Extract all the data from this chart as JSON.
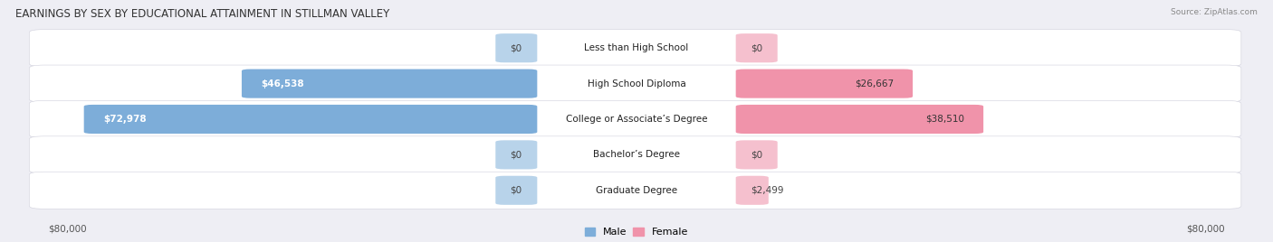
{
  "title": "EARNINGS BY SEX BY EDUCATIONAL ATTAINMENT IN STILLMAN VALLEY",
  "source": "Source: ZipAtlas.com",
  "categories": [
    "Less than High School",
    "High School Diploma",
    "College or Associate’s Degree",
    "Bachelor’s Degree",
    "Graduate Degree"
  ],
  "male_values": [
    0,
    46538,
    72978,
    0,
    0
  ],
  "female_values": [
    0,
    26667,
    38510,
    0,
    2499
  ],
  "male_labels": [
    "$0",
    "$46,538",
    "$72,978",
    "$0",
    "$0"
  ],
  "female_labels": [
    "$0",
    "$26,667",
    "$38,510",
    "$0",
    "$2,499"
  ],
  "male_color": "#7dadd9",
  "female_color": "#f093aa",
  "male_color_light": "#b8d3ea",
  "female_color_light": "#f5c0ce",
  "max_value": 80000,
  "axis_label_left": "$80,000",
  "axis_label_right": "$80,000",
  "background_color": "#eeeef4",
  "row_bg_color": "#ffffff",
  "title_fontsize": 8.5,
  "label_fontsize": 7.5,
  "category_fontsize": 7.5
}
